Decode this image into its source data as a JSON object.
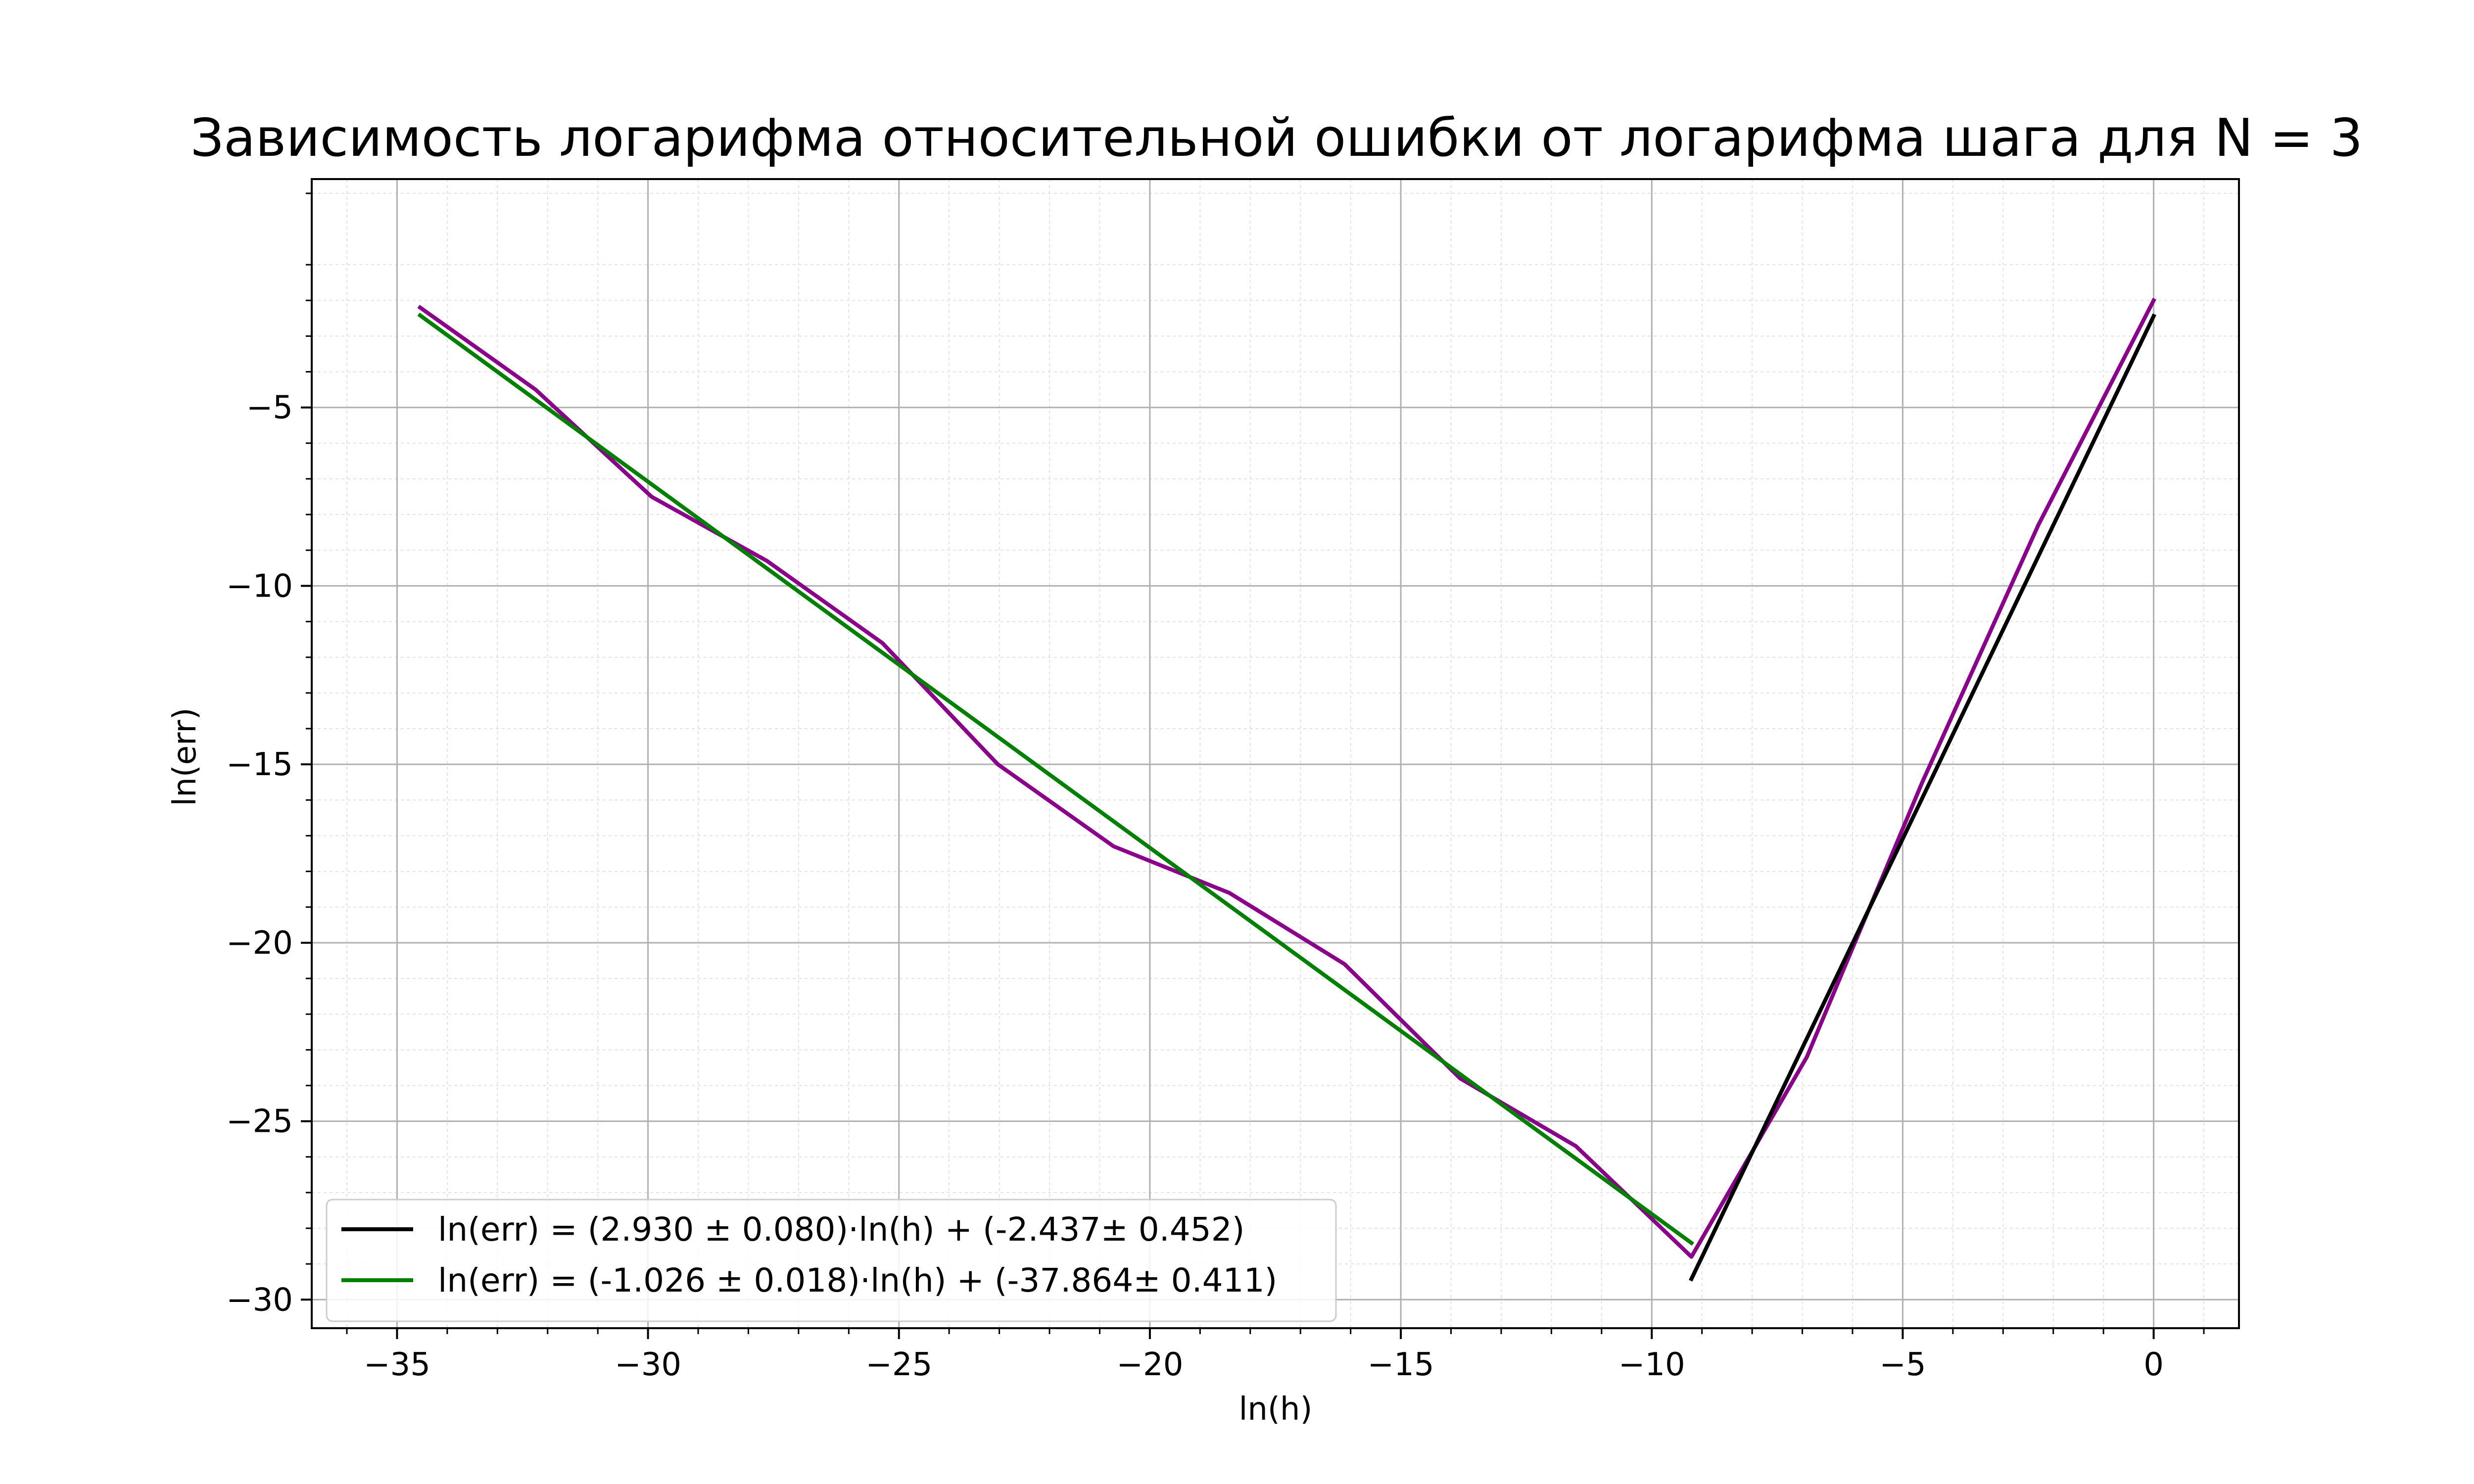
{
  "chart_data": {
    "type": "line",
    "title": "Зависимость логарифма относительной ошибки от логарифма шага для N = 3",
    "xlabel": "ln(h)",
    "ylabel": "ln(err)",
    "xlim": [
      -36.7,
      1.7
    ],
    "ylim": [
      -30.8,
      1.4
    ],
    "x_ticks": [
      -35,
      -30,
      -25,
      -20,
      -15,
      -10,
      -5,
      0
    ],
    "y_ticks": [
      -5,
      -10,
      -15,
      -20,
      -25,
      -30
    ],
    "x_tick_labels": [
      "−35",
      "−30",
      "−25",
      "−20",
      "−15",
      "−10",
      "−5",
      "0"
    ],
    "y_tick_labels": [
      "−5",
      "−10",
      "−15",
      "−20",
      "−25",
      "−30"
    ],
    "grid": true,
    "minor_grid": true,
    "legend_position": "lower-left",
    "series": [
      {
        "name": "",
        "color": "#8b008b",
        "x": [
          -34.54,
          -32.24,
          -29.93,
          -27.63,
          -25.33,
          -23.03,
          -20.72,
          -18.42,
          -16.12,
          -13.82,
          -11.51,
          -9.21,
          -6.91,
          -4.61,
          -2.3,
          0.0
        ],
        "y": [
          -2.2,
          -4.5,
          -7.5,
          -9.3,
          -11.6,
          -15.0,
          -17.3,
          -18.6,
          -20.6,
          -23.8,
          -25.7,
          -28.8,
          -23.2,
          -15.5,
          -8.3,
          -2.0
        ]
      },
      {
        "name": "ln(err) = (2.930 ± 0.080)·ln(h) + (-2.437± 0.452)",
        "color": "#000000",
        "x": [
          -9.21,
          0.0
        ],
        "y": [
          -29.42,
          -2.44
        ]
      },
      {
        "name": "ln(err) = (-1.026 ± 0.018)·ln(h) + (-37.864± 0.411)",
        "color": "#008000",
        "x": [
          -34.54,
          -9.21
        ],
        "y": [
          -2.42,
          -28.41
        ]
      }
    ]
  }
}
